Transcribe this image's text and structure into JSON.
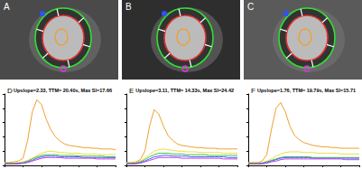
{
  "panels": [
    {
      "label": "A"
    },
    {
      "label": "B"
    },
    {
      "label": "C"
    }
  ],
  "chart_data": [
    {
      "type": "line",
      "panel": "D",
      "title": "Upslope=2.33, TTM= 20.40s, Max SI=17.66",
      "x": [
        0,
        1,
        2,
        3,
        4,
        5,
        6,
        7,
        8,
        9,
        10,
        11,
        12,
        13,
        14,
        15,
        16,
        17,
        18,
        19,
        20,
        21,
        22,
        23,
        24
      ],
      "xlim": [
        0,
        24
      ],
      "xticks": [
        0,
        4,
        8,
        12,
        16,
        20,
        24
      ],
      "ylim": [
        0,
        100
      ],
      "yticks": [
        0,
        20,
        40,
        60,
        80,
        100
      ],
      "tick_labels": false,
      "grid": false,
      "series": [
        {
          "color": "#f0a030",
          "values": [
            4,
            4,
            5,
            6,
            10,
            35,
            75,
            92,
            85,
            65,
            50,
            40,
            34,
            30,
            28,
            27,
            26,
            25,
            25,
            24,
            24,
            23,
            23,
            23,
            22
          ]
        },
        {
          "color": "#e8e040",
          "values": [
            3,
            3,
            3,
            4,
            5,
            7,
            10,
            14,
            17,
            19,
            20,
            19,
            18,
            18,
            17,
            17,
            17,
            16,
            16,
            16,
            16,
            15,
            15,
            15,
            15
          ]
        },
        {
          "color": "#40c040",
          "values": [
            3,
            3,
            3,
            3,
            4,
            6,
            9,
            12,
            14,
            15,
            15,
            15,
            14,
            14,
            14,
            14,
            13,
            13,
            13,
            13,
            13,
            13,
            12,
            12,
            12
          ]
        },
        {
          "color": "#4060ff",
          "values": [
            2,
            2,
            2,
            3,
            3,
            5,
            7,
            10,
            12,
            13,
            13,
            13,
            12,
            12,
            12,
            12,
            12,
            11,
            11,
            11,
            11,
            11,
            11,
            11,
            11
          ]
        },
        {
          "color": "#c040e0",
          "values": [
            2,
            2,
            2,
            2,
            3,
            4,
            6,
            8,
            10,
            11,
            11,
            11,
            11,
            10,
            10,
            10,
            10,
            10,
            10,
            10,
            9,
            9,
            9,
            9,
            9
          ]
        }
      ]
    },
    {
      "type": "line",
      "panel": "E",
      "title": "Upslope=3.11, TTM= 14.33s, Max SI=24.42",
      "x": [
        0,
        1,
        2,
        3,
        4,
        5,
        6,
        7,
        8,
        9,
        10,
        11,
        12,
        13,
        14,
        15,
        16,
        17,
        18,
        19,
        20,
        21,
        22,
        23,
        24
      ],
      "xlim": [
        0,
        24
      ],
      "xticks": [
        0,
        4,
        8,
        12,
        16,
        20,
        24
      ],
      "ylim": [
        0,
        100
      ],
      "yticks": [
        0,
        20,
        40,
        60,
        80,
        100
      ],
      "tick_labels": false,
      "grid": false,
      "series": [
        {
          "color": "#f0a030",
          "values": [
            4,
            4,
            5,
            8,
            20,
            55,
            78,
            72,
            55,
            42,
            35,
            30,
            28,
            27,
            26,
            25,
            25,
            24,
            24,
            24,
            23,
            23,
            23,
            23,
            23
          ]
        },
        {
          "color": "#e8e040",
          "values": [
            3,
            3,
            4,
            6,
            10,
            15,
            20,
            22,
            23,
            22,
            21,
            20,
            20,
            19,
            19,
            19,
            18,
            18,
            18,
            18,
            18,
            17,
            17,
            17,
            17
          ]
        },
        {
          "color": "#40c040",
          "values": [
            3,
            3,
            3,
            5,
            8,
            12,
            15,
            17,
            17,
            17,
            16,
            16,
            16,
            15,
            15,
            15,
            15,
            15,
            14,
            14,
            14,
            14,
            14,
            14,
            14
          ]
        },
        {
          "color": "#4060ff",
          "values": [
            2,
            2,
            3,
            4,
            6,
            9,
            12,
            13,
            14,
            14,
            13,
            13,
            13,
            13,
            12,
            12,
            12,
            12,
            12,
            12,
            12,
            12,
            11,
            11,
            11
          ]
        },
        {
          "color": "#c040e0",
          "values": [
            2,
            2,
            2,
            3,
            5,
            7,
            9,
            11,
            11,
            11,
            11,
            11,
            10,
            10,
            10,
            10,
            10,
            10,
            10,
            10,
            10,
            9,
            9,
            9,
            9
          ]
        }
      ]
    },
    {
      "type": "line",
      "panel": "F",
      "title": "Upslope=1.76, TTM= 19.79s, Max SI=15.71",
      "x": [
        0,
        1,
        2,
        3,
        4,
        5,
        6,
        7,
        8,
        9,
        10,
        11,
        12,
        13,
        14,
        15,
        16,
        17,
        18,
        19,
        20,
        21,
        22,
        23,
        24
      ],
      "xlim": [
        0,
        24
      ],
      "xticks": [
        0,
        4,
        8,
        12,
        16,
        20,
        24
      ],
      "ylim": [
        0,
        100
      ],
      "yticks": [
        0,
        20,
        40,
        60,
        80,
        100
      ],
      "tick_labels": false,
      "grid": false,
      "series": [
        {
          "color": "#f0a030",
          "values": [
            4,
            4,
            4,
            6,
            15,
            50,
            80,
            88,
            75,
            55,
            42,
            36,
            32,
            30,
            28,
            27,
            26,
            26,
            25,
            25,
            24,
            24,
            24,
            24,
            24
          ]
        },
        {
          "color": "#e8e040",
          "values": [
            3,
            3,
            3,
            4,
            6,
            9,
            13,
            16,
            18,
            19,
            19,
            19,
            18,
            18,
            18,
            17,
            17,
            17,
            17,
            17,
            16,
            16,
            16,
            16,
            16
          ]
        },
        {
          "color": "#40c040",
          "values": [
            3,
            3,
            3,
            3,
            5,
            7,
            9,
            11,
            12,
            12,
            12,
            12,
            12,
            12,
            11,
            11,
            11,
            11,
            11,
            11,
            11,
            11,
            11,
            11,
            11
          ]
        },
        {
          "color": "#4060ff",
          "values": [
            2,
            2,
            2,
            3,
            4,
            6,
            8,
            10,
            11,
            11,
            11,
            11,
            11,
            11,
            10,
            10,
            10,
            10,
            10,
            10,
            10,
            10,
            10,
            10,
            10
          ]
        },
        {
          "color": "#c040e0",
          "values": [
            2,
            2,
            2,
            2,
            3,
            5,
            6,
            8,
            9,
            9,
            9,
            9,
            9,
            9,
            9,
            9,
            9,
            9,
            9,
            9,
            9,
            8,
            8,
            8,
            8
          ]
        }
      ]
    }
  ]
}
